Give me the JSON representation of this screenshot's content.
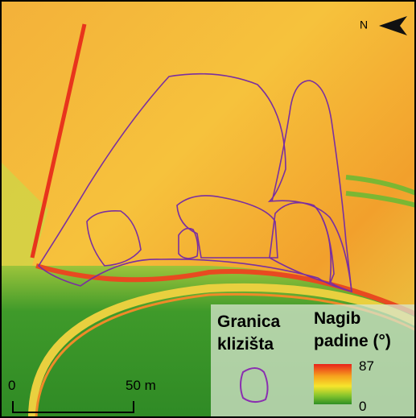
{
  "north_arrow": {
    "label": "N"
  },
  "scale_bar": {
    "start_label": "0",
    "end_label": "50 m"
  },
  "legend": {
    "boundary_title": [
      "Granica",
      "klizišta"
    ],
    "slope_title": [
      "Nagib",
      "padine (°)"
    ],
    "slope_max": "87",
    "slope_min": "0"
  }
}
